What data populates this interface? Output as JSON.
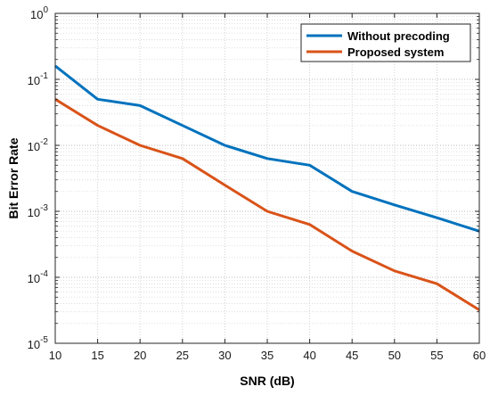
{
  "chart_data": {
    "type": "line",
    "xlabel": "SNR (dB)",
    "ylabel": "Bit Error Rate",
    "xlim": [
      10,
      60
    ],
    "ylim": [
      1e-05,
      1
    ],
    "yscale": "log",
    "grid": true,
    "minor_grid": true,
    "legend_position": "top-right",
    "x_ticks": [
      10,
      15,
      20,
      25,
      30,
      35,
      40,
      45,
      50,
      55,
      60
    ],
    "y_ticks": [
      {
        "base": "10",
        "exp": "-5",
        "value": 1e-05
      },
      {
        "base": "10",
        "exp": "-4",
        "value": 0.0001
      },
      {
        "base": "10",
        "exp": "-3",
        "value": 0.001
      },
      {
        "base": "10",
        "exp": "-2",
        "value": 0.01
      },
      {
        "base": "10",
        "exp": "-1",
        "value": 0.1
      },
      {
        "base": "10",
        "exp": "0",
        "value": 1
      }
    ],
    "x": [
      10,
      15,
      20,
      25,
      30,
      35,
      40,
      45,
      50,
      55,
      60
    ],
    "series": [
      {
        "name": "Without precoding",
        "color": "#0072bd",
        "values": [
          0.16,
          0.05,
          0.04,
          0.02,
          0.01,
          0.0063,
          0.005,
          0.002,
          0.00125,
          0.0008,
          0.0005
        ]
      },
      {
        "name": "Proposed system",
        "color": "#d95319",
        "values": [
          0.05,
          0.02,
          0.01,
          0.0063,
          0.0025,
          0.001,
          0.00063,
          0.00025,
          0.000125,
          8e-05,
          3.2e-05
        ]
      }
    ]
  }
}
